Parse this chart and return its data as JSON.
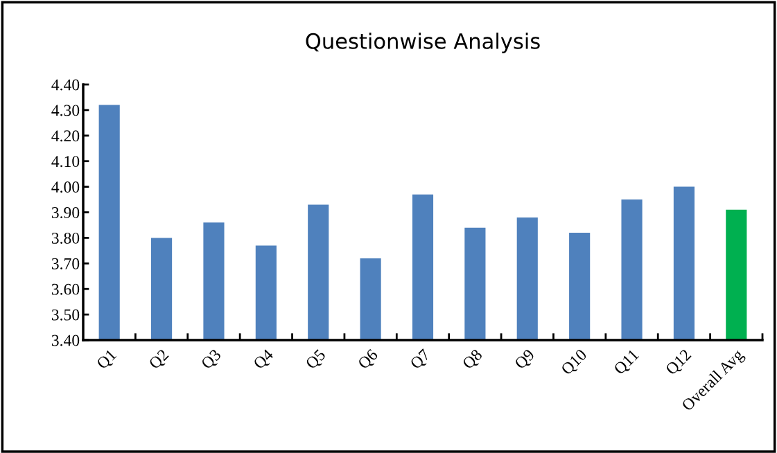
{
  "chart_data": {
    "type": "bar",
    "title": "Questionwise Analysis",
    "categories": [
      "Q1",
      "Q2",
      "Q3",
      "Q4",
      "Q5",
      "Q6",
      "Q7",
      "Q8",
      "Q9",
      "Q10",
      "Q11",
      "Q12",
      "Overall Avg"
    ],
    "values": [
      4.32,
      3.8,
      3.86,
      3.77,
      3.93,
      3.72,
      3.97,
      3.84,
      3.88,
      3.82,
      3.95,
      4.0,
      3.91
    ],
    "colors": [
      "#4f81bd",
      "#4f81bd",
      "#4f81bd",
      "#4f81bd",
      "#4f81bd",
      "#4f81bd",
      "#4f81bd",
      "#4f81bd",
      "#4f81bd",
      "#4f81bd",
      "#4f81bd",
      "#4f81bd",
      "#00b050"
    ],
    "ylim": [
      3.4,
      4.4
    ],
    "yticks": [
      {
        "value": 3.4,
        "label": "3.40"
      },
      {
        "value": 3.5,
        "label": "3.50"
      },
      {
        "value": 3.6,
        "label": "3.60"
      },
      {
        "value": 3.7,
        "label": "3.70"
      },
      {
        "value": 3.8,
        "label": "3.80"
      },
      {
        "value": 3.9,
        "label": "3.90"
      },
      {
        "value": 4.0,
        "label": "4.00"
      },
      {
        "value": 4.1,
        "label": "4.10"
      },
      {
        "value": 4.2,
        "label": "4.20"
      },
      {
        "value": 4.3,
        "label": "4.30"
      },
      {
        "value": 4.4,
        "label": "4.40"
      }
    ],
    "grid": false,
    "legend": false
  }
}
